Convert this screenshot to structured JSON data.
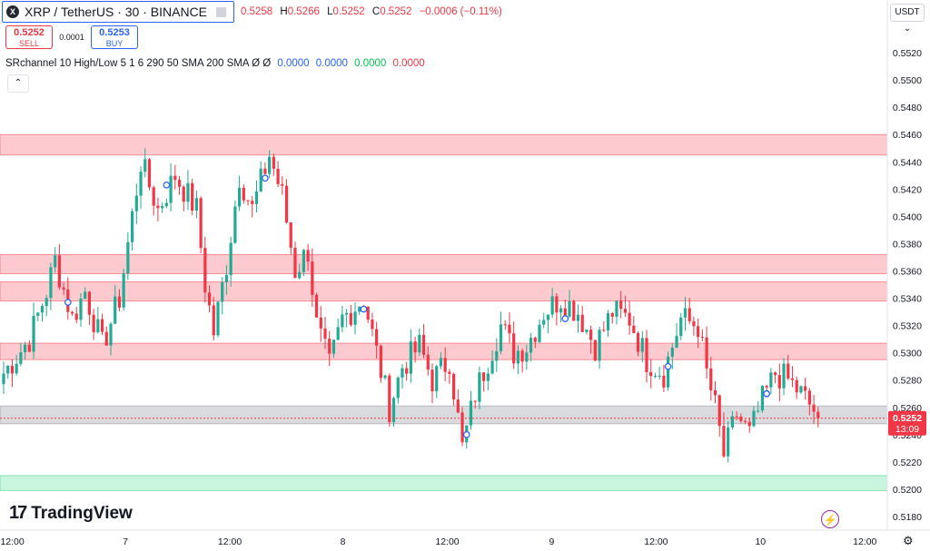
{
  "header": {
    "symbol_logo": "X",
    "symbol_title": "XRP / TetherUS · 30 · BINANCE",
    "ohlc": {
      "o_label": "",
      "o_value": "0.5258",
      "h_label": "H",
      "h_value": "0.5266",
      "l_label": "L",
      "l_value": "0.5252",
      "c_label": "C",
      "c_value": "0.5252",
      "change": "−0.0006 (−0.11%)"
    },
    "currency": "USDT ⌄"
  },
  "trade": {
    "sell_price": "0.5252",
    "sell_label": "SELL",
    "spread": "0.0001",
    "buy_price": "0.5253",
    "buy_label": "BUY"
  },
  "indicator": {
    "name": "SRchannel 10 High/Low 5 1 6 290 50 SMA 200 SMA  Ø  Ø",
    "v1": "0.0000",
    "v2": "0.0000",
    "v3": "0.0000",
    "v4": "0.0000",
    "collapse": "⌃"
  },
  "branding": {
    "logo_mark": "17",
    "logo_text": "TradingView"
  },
  "colors": {
    "up": "#22ab94",
    "down": "#f23645",
    "zone_red": "#f7525f",
    "zone_gray": "#9598a1",
    "zone_green": "#4cdb8f",
    "price_label": "#f23645"
  },
  "chart_data": {
    "type": "candlestick",
    "ylim": [
      0.518,
      0.553
    ],
    "y_ticks": [
      "0.5520",
      "0.5500",
      "0.5480",
      "0.5460",
      "0.5440",
      "0.5420",
      "0.5400",
      "0.5380",
      "0.5360",
      "0.5340",
      "0.5320",
      "0.5300",
      "0.5280",
      "0.5260",
      "0.5240",
      "0.5220",
      "0.5200",
      "0.5180"
    ],
    "x_ticks": [
      {
        "label": "12:00",
        "index": 2
      },
      {
        "label": "7",
        "index": 28
      },
      {
        "label": "12:00",
        "index": 52
      },
      {
        "label": "8",
        "index": 78
      },
      {
        "label": "12:00",
        "index": 102
      },
      {
        "label": "9",
        "index": 126
      },
      {
        "label": "12:00",
        "index": 150
      },
      {
        "label": "10",
        "index": 174
      },
      {
        "label": "12:00",
        "index": 198
      }
    ],
    "bars_total": 204,
    "zones": [
      {
        "top": 0.546,
        "bottom": 0.5445,
        "color": "red"
      },
      {
        "top": 0.5372,
        "bottom": 0.5358,
        "color": "red"
      },
      {
        "top": 0.5352,
        "bottom": 0.5338,
        "color": "red"
      },
      {
        "top": 0.5307,
        "bottom": 0.5295,
        "color": "red"
      },
      {
        "top": 0.5261,
        "bottom": 0.5248,
        "color": "gray"
      },
      {
        "top": 0.521,
        "bottom": 0.5199,
        "color": "green"
      }
    ],
    "last_price": {
      "value": "0.5252",
      "countdown": "13:09",
      "numeric": 0.5252
    },
    "markers": [
      {
        "index": 15,
        "value": 0.5337
      },
      {
        "index": 38,
        "value": 0.5423
      },
      {
        "index": 61,
        "value": 0.5428
      },
      {
        "index": 84,
        "value": 0.5332
      },
      {
        "index": 108,
        "value": 0.524
      },
      {
        "index": 131,
        "value": 0.5325
      },
      {
        "index": 155,
        "value": 0.529
      },
      {
        "index": 178,
        "value": 0.527
      }
    ],
    "anchors": [
      {
        "i": 0,
        "v": 0.5285
      },
      {
        "i": 6,
        "v": 0.531
      },
      {
        "i": 10,
        "v": 0.5345
      },
      {
        "i": 12,
        "v": 0.5368
      },
      {
        "i": 16,
        "v": 0.5325
      },
      {
        "i": 19,
        "v": 0.5345
      },
      {
        "i": 23,
        "v": 0.5305
      },
      {
        "i": 27,
        "v": 0.534
      },
      {
        "i": 32,
        "v": 0.544
      },
      {
        "i": 36,
        "v": 0.5405
      },
      {
        "i": 40,
        "v": 0.543
      },
      {
        "i": 45,
        "v": 0.5405
      },
      {
        "i": 47,
        "v": 0.535
      },
      {
        "i": 49,
        "v": 0.5315
      },
      {
        "i": 52,
        "v": 0.5365
      },
      {
        "i": 55,
        "v": 0.543
      },
      {
        "i": 58,
        "v": 0.5405
      },
      {
        "i": 62,
        "v": 0.5445
      },
      {
        "i": 65,
        "v": 0.5415
      },
      {
        "i": 68,
        "v": 0.536
      },
      {
        "i": 71,
        "v": 0.5375
      },
      {
        "i": 73,
        "v": 0.532
      },
      {
        "i": 76,
        "v": 0.529
      },
      {
        "i": 79,
        "v": 0.5325
      },
      {
        "i": 84,
        "v": 0.534
      },
      {
        "i": 87,
        "v": 0.53
      },
      {
        "i": 90,
        "v": 0.526
      },
      {
        "i": 93,
        "v": 0.529
      },
      {
        "i": 97,
        "v": 0.5305
      },
      {
        "i": 100,
        "v": 0.528
      },
      {
        "i": 104,
        "v": 0.5295
      },
      {
        "i": 107,
        "v": 0.523
      },
      {
        "i": 110,
        "v": 0.527
      },
      {
        "i": 113,
        "v": 0.5295
      },
      {
        "i": 116,
        "v": 0.532
      },
      {
        "i": 119,
        "v": 0.53
      },
      {
        "i": 122,
        "v": 0.5305
      },
      {
        "i": 126,
        "v": 0.533
      },
      {
        "i": 130,
        "v": 0.534
      },
      {
        "i": 134,
        "v": 0.533
      },
      {
        "i": 138,
        "v": 0.5305
      },
      {
        "i": 142,
        "v": 0.533
      },
      {
        "i": 146,
        "v": 0.5325
      },
      {
        "i": 150,
        "v": 0.5295
      },
      {
        "i": 154,
        "v": 0.5285
      },
      {
        "i": 158,
        "v": 0.5325
      },
      {
        "i": 162,
        "v": 0.532
      },
      {
        "i": 164,
        "v": 0.5285
      },
      {
        "i": 166,
        "v": 0.526
      },
      {
        "i": 168,
        "v": 0.5225
      },
      {
        "i": 171,
        "v": 0.5255
      },
      {
        "i": 174,
        "v": 0.524
      },
      {
        "i": 177,
        "v": 0.5265
      },
      {
        "i": 180,
        "v": 0.5285
      },
      {
        "i": 183,
        "v": 0.528
      },
      {
        "i": 186,
        "v": 0.527
      },
      {
        "i": 189,
        "v": 0.5258
      },
      {
        "i": 190,
        "v": 0.5252
      }
    ],
    "n_candles": 191
  }
}
